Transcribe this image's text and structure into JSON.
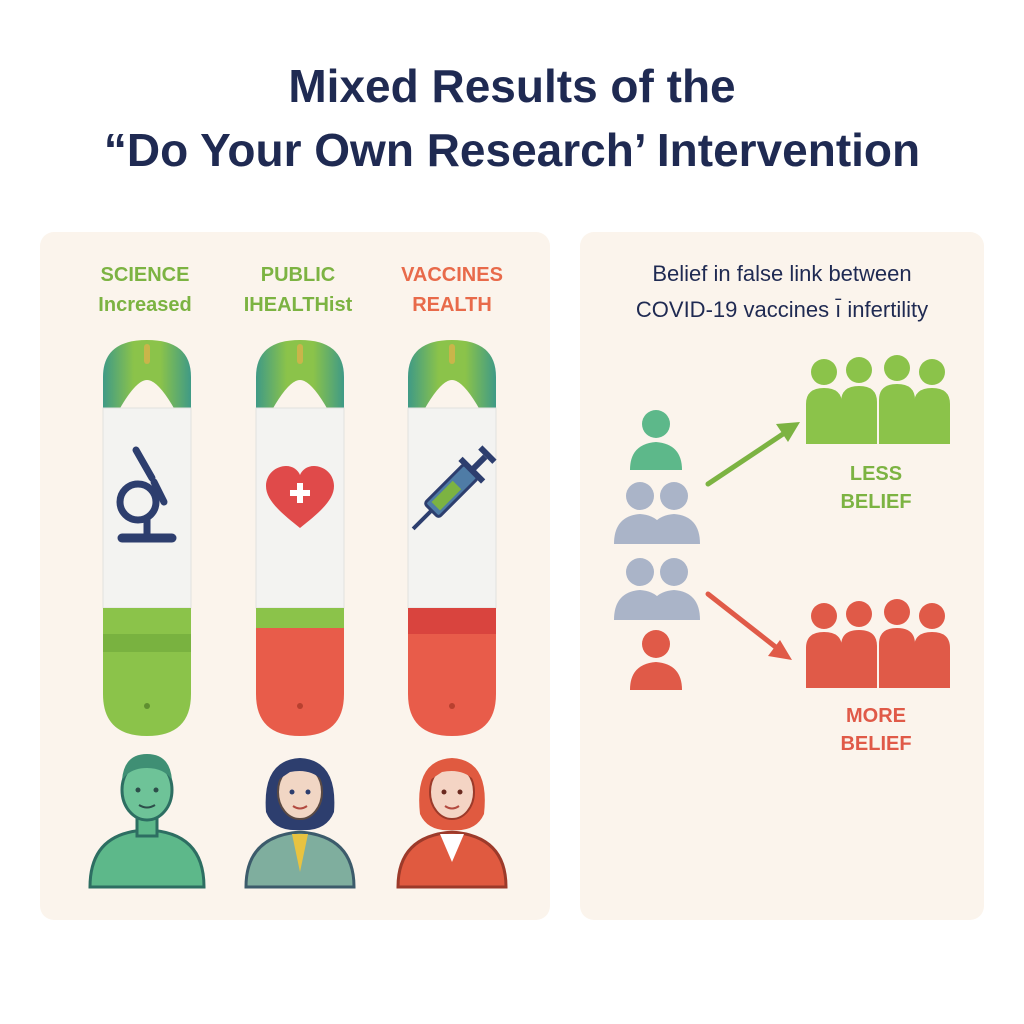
{
  "title": {
    "line1": "Mixed Results of the",
    "line2": "“Do Your Own Research’ Intervention"
  },
  "left_panel": {
    "columns": [
      {
        "label_line1": "SCIENCE",
        "label_line2": "Increased",
        "label_color": "#7cb342",
        "icon": "microscope-icon",
        "fill_color": "#8bc34a",
        "outcome": "green",
        "person": "man-avatar"
      },
      {
        "label_line1": "PUBLIC",
        "label_line2": "IHEALTHist",
        "label_color": "#7cb342",
        "icon": "heart-plus-icon",
        "fill_color": "#e85c4a",
        "outcome": "red",
        "person": "woman-avatar"
      },
      {
        "label_line1": "VACCINES",
        "label_line2": "REALTH",
        "label_color": "#e86a4a",
        "icon": "syringe-icon",
        "fill_color": "#e85c4a",
        "outcome": "red",
        "person": "woman-red-avatar"
      }
    ]
  },
  "right_panel": {
    "header_line1": "Belief in false link between",
    "header_line2": "COVID-19 vaccines ı̄ infertility",
    "outcomes": [
      {
        "line1": "LESS",
        "line2": "BELIEF",
        "color": "#7cb342",
        "direction": "up"
      },
      {
        "line1": "MORE",
        "line2": "BELIEF",
        "color": "#e05a48",
        "direction": "down"
      }
    ]
  },
  "colors": {
    "title": "#1f2a52",
    "panel_bg": "#fbf4ec",
    "green": "#8bc34a",
    "teal_green": "#5bb08a",
    "red": "#e85c4a",
    "gray": "#aab4c8",
    "navy": "#2d3e6e"
  }
}
